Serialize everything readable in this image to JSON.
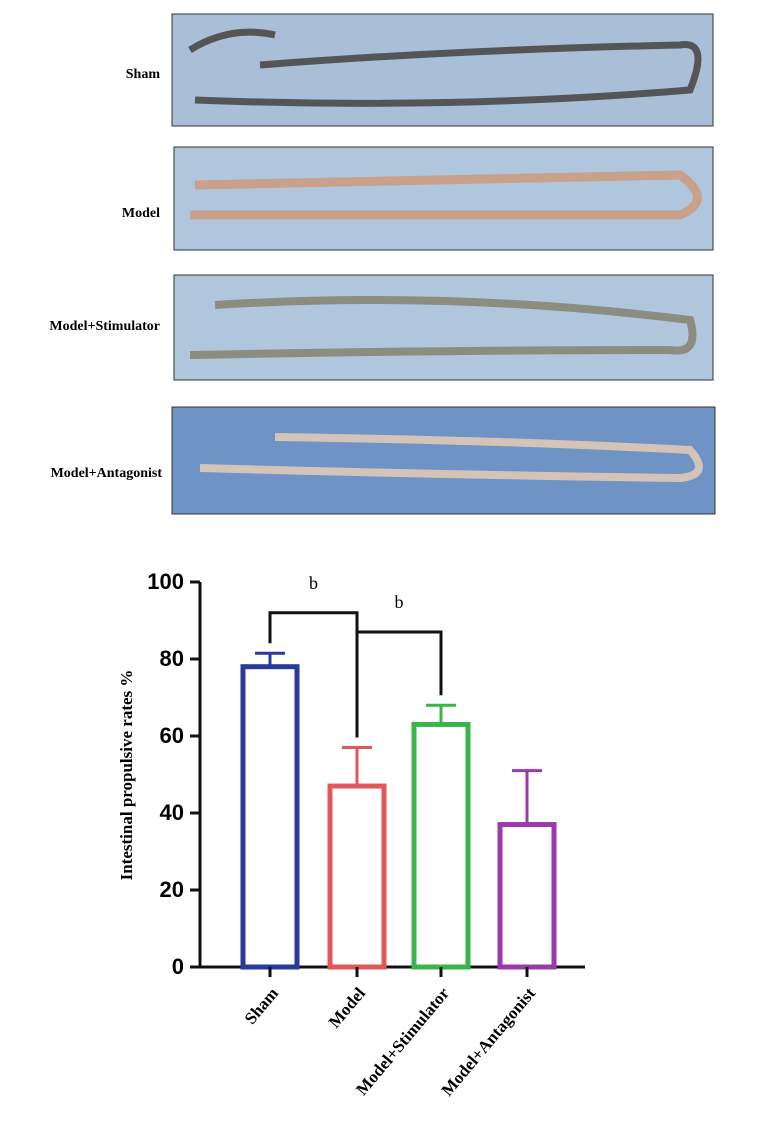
{
  "photo_labels": [
    "Sham",
    "Model",
    "Model+Stimulator",
    "Model+Antagonist"
  ],
  "chart_data": {
    "type": "bar",
    "y_label": "Intestinal propulsive rates %",
    "categories": [
      "Sham",
      "Model",
      "Model+Stimulator",
      "Model+Antagonist"
    ],
    "values": [
      78,
      47,
      63,
      37
    ],
    "errors": [
      3.5,
      10,
      5,
      14
    ],
    "colors": [
      "#2b3a98",
      "#e0585c",
      "#3bb44a",
      "#9b3aab"
    ],
    "ylim": [
      0,
      100
    ],
    "yticks": [
      0,
      20,
      40,
      60,
      80,
      100
    ],
    "annotations": [
      {
        "text": "b",
        "between": [
          0,
          1
        ],
        "y": 92
      },
      {
        "text": "b",
        "between": [
          1,
          2
        ],
        "y": 87
      }
    ]
  }
}
